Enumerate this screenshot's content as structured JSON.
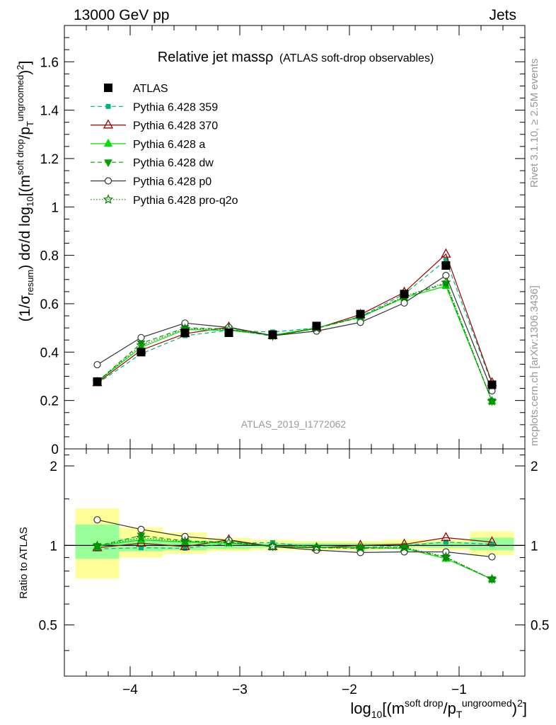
{
  "header": {
    "left": "13000 GeV pp",
    "right": "Jets"
  },
  "side_labels": {
    "rivet": "Rivet 3.1.10, ≥ 2.5M events",
    "mcplots": "mcplots.cern.ch [arXiv:1306.3436]"
  },
  "watermark": "ATLAS_2019_I1772062",
  "colors": {
    "atlas": "#000000",
    "p359": "#00b27f",
    "p370": "#990000",
    "pa": "#00e000",
    "pdw": "#00a000",
    "pp0": "#333333",
    "pq2o": "#008000",
    "band_outer": "#ffff99",
    "band_inner": "#99ff99"
  },
  "chart_data": [
    {
      "type": "scatter",
      "panel": "main",
      "title": "Relative jet massρ",
      "subtitle": "(ATLAS soft-drop observables)",
      "ylabel": "(1/σ_resum) dσ/d log10[(m^soft drop/pT^ungroomed)^2]",
      "xlim": [
        -4.6,
        -0.4
      ],
      "ylim": [
        0,
        1.75
      ],
      "yticks": [
        0,
        0.2,
        0.4,
        0.6,
        0.8,
        1,
        1.2,
        1.4,
        1.6
      ],
      "ytick_labels": [
        "0",
        "0.2",
        "0.4",
        "0.6",
        "0.8",
        "1",
        "1.2",
        "1.4",
        "1.6"
      ],
      "x": [
        -4.3,
        -3.9,
        -3.5,
        -3.1,
        -2.7,
        -2.3,
        -1.9,
        -1.5,
        -1.12,
        -0.7
      ],
      "series": [
        {
          "key": "atlas",
          "name": "ATLAS",
          "values": [
            0.278,
            0.4,
            0.48,
            0.48,
            0.472,
            0.508,
            0.557,
            0.64,
            0.758,
            0.265
          ]
        },
        {
          "key": "p359",
          "name": "Pythia 6.428 359",
          "values": [
            0.27,
            0.393,
            0.468,
            0.49,
            0.483,
            0.5,
            0.547,
            0.64,
            0.78,
            0.268
          ]
        },
        {
          "key": "p370",
          "name": "Pythia 6.428 370",
          "values": [
            0.273,
            0.408,
            0.476,
            0.503,
            0.468,
            0.498,
            0.555,
            0.647,
            0.805,
            0.273
          ]
        },
        {
          "key": "pa",
          "name": "Pythia 6.428 a",
          "values": [
            0.277,
            0.42,
            0.493,
            0.49,
            0.47,
            0.5,
            0.545,
            0.625,
            0.673,
            0.197
          ]
        },
        {
          "key": "pdw",
          "name": "Pythia 6.428 dw",
          "values": [
            0.277,
            0.436,
            0.5,
            0.496,
            0.466,
            0.498,
            0.544,
            0.628,
            0.683,
            0.197
          ]
        },
        {
          "key": "pp0",
          "name": "Pythia 6.428 p0",
          "values": [
            0.348,
            0.46,
            0.52,
            0.502,
            0.468,
            0.487,
            0.523,
            0.603,
            0.717,
            0.24
          ]
        },
        {
          "key": "pq2o",
          "name": "Pythia 6.428 pro-q2o",
          "values": [
            0.277,
            0.428,
            0.497,
            0.494,
            0.468,
            0.499,
            0.545,
            0.63,
            0.688,
            0.197
          ]
        }
      ]
    },
    {
      "type": "scatter",
      "panel": "ratio",
      "ylabel": "Ratio to ATLAS",
      "xlabel": "log10[(m^soft drop/pT^ungroomed)^2]",
      "xlim": [
        -4.6,
        -0.4
      ],
      "ylim": [
        0.32,
        2.32
      ],
      "xticks": [
        -4,
        -3,
        -2,
        -1
      ],
      "xtick_labels": [
        "−4",
        "−3",
        "−2",
        "−1"
      ],
      "yticks": [
        0.5,
        1,
        2
      ],
      "ytick_labels": [
        "0.5",
        "1",
        "2"
      ],
      "band_edges": [
        -4.5,
        -4.1,
        -3.7,
        -3.3,
        -2.9,
        -2.5,
        -2.1,
        -1.7,
        -1.3,
        -0.9,
        -0.5
      ],
      "band_outer": [
        [
          0.75,
          1.38
        ],
        [
          0.9,
          1.17
        ],
        [
          0.93,
          1.12
        ],
        [
          0.95,
          1.07
        ],
        [
          0.96,
          1.05
        ],
        [
          0.96,
          1.04
        ],
        [
          0.96,
          1.04
        ],
        [
          0.97,
          1.05
        ],
        [
          0.96,
          1.05
        ],
        [
          0.92,
          1.13
        ]
      ],
      "band_inner": [
        [
          0.89,
          1.2
        ],
        [
          0.95,
          1.06
        ],
        [
          0.96,
          1.04
        ],
        [
          0.97,
          1.03
        ],
        [
          0.98,
          1.02
        ],
        [
          0.98,
          1.02
        ],
        [
          0.985,
          1.02
        ],
        [
          0.985,
          1.02
        ],
        [
          0.98,
          1.03
        ],
        [
          0.96,
          1.07
        ]
      ],
      "x": [
        -4.3,
        -3.9,
        -3.5,
        -3.1,
        -2.7,
        -2.3,
        -1.9,
        -1.5,
        -1.12,
        -0.7
      ],
      "series": [
        {
          "key": "p359",
          "name": "Pythia 6.428 359",
          "values": [
            0.97,
            0.98,
            0.975,
            1.02,
            1.025,
            0.985,
            0.98,
            1.0,
            1.03,
            1.01
          ]
        },
        {
          "key": "p370",
          "name": "Pythia 6.428 370",
          "values": [
            0.98,
            1.02,
            0.99,
            1.05,
            0.99,
            0.98,
            1.0,
            1.01,
            1.07,
            1.03
          ]
        },
        {
          "key": "pa",
          "name": "Pythia 6.428 a",
          "values": [
            0.995,
            1.05,
            1.03,
            1.02,
            0.995,
            0.985,
            0.98,
            0.975,
            0.89,
            0.745
          ]
        },
        {
          "key": "pdw",
          "name": "Pythia 6.428 dw",
          "values": [
            0.995,
            1.09,
            1.04,
            1.03,
            0.99,
            0.98,
            0.975,
            0.98,
            0.9,
            0.745
          ]
        },
        {
          "key": "pp0",
          "name": "Pythia 6.428 p0",
          "values": [
            1.25,
            1.15,
            1.08,
            1.045,
            0.99,
            0.96,
            0.94,
            0.945,
            0.945,
            0.905
          ]
        },
        {
          "key": "pq2o",
          "name": "Pythia 6.428 pro-q2o",
          "values": [
            0.995,
            1.07,
            1.035,
            1.025,
            0.99,
            0.982,
            0.978,
            0.982,
            0.905,
            0.745
          ]
        }
      ]
    }
  ]
}
